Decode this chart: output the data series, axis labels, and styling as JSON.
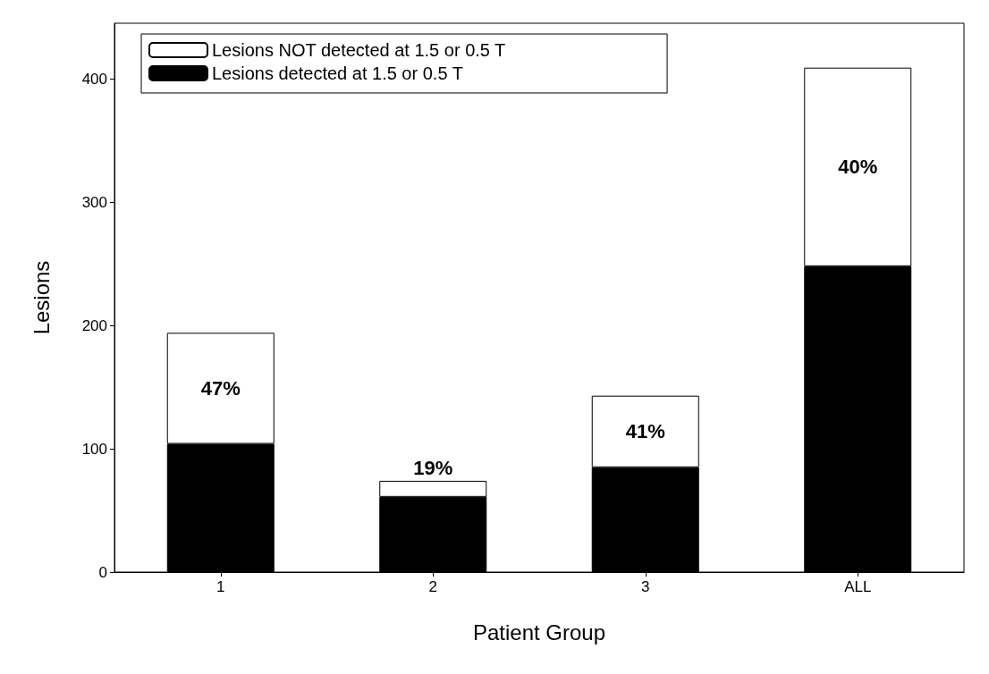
{
  "chart_data": {
    "type": "bar",
    "stacked": true,
    "xlabel": "Patient Group",
    "ylabel": "Lesions",
    "categories": [
      "1",
      "2",
      "3",
      "ALL"
    ],
    "series": [
      {
        "name": "Lesions detected at 1.5 or 0.5 T",
        "color": "#000000",
        "values": [
          104,
          61,
          85,
          248
        ]
      },
      {
        "name": "Lesions NOT detected at 1.5 or 0.5 T",
        "color": "#ffffff",
        "values": [
          90,
          13,
          58,
          161
        ]
      }
    ],
    "ylim": [
      0,
      445
    ],
    "yticks": [
      0,
      100,
      200,
      300,
      400
    ],
    "grid": false,
    "legend": "top left",
    "annotations": [
      "47%",
      "19%",
      "41%",
      "40%"
    ]
  }
}
